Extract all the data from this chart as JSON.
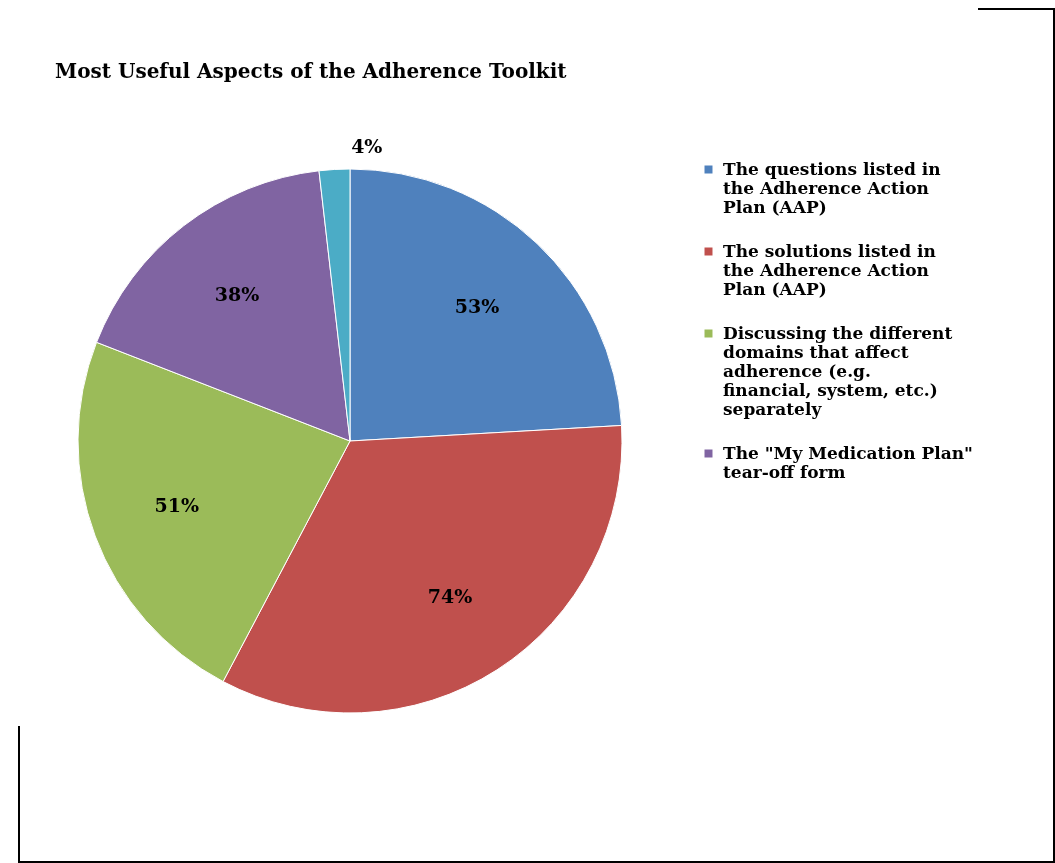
{
  "chart_data": {
    "type": "pie",
    "title": "Most Useful Aspects of the Adherence Toolkit",
    "categories": [
      "The questions listed in the Adherence Action Plan (AAP)",
      "The solutions listed in the Adherence Action Plan (AAP)",
      "Discussing the different domains that affect adherence (e.g. financial, system, etc.) separately",
      "The \"My Medication Plan\" tear-off form",
      null
    ],
    "values": [
      53,
      74,
      51,
      38,
      4
    ],
    "colors": [
      "#4f81bd",
      "#c0504d",
      "#9bbb59",
      "#8064a2",
      "#4bacc6"
    ],
    "value_labels": [
      "53%",
      "74%",
      "51%",
      "38%",
      "4%"
    ],
    "legend": "right"
  }
}
